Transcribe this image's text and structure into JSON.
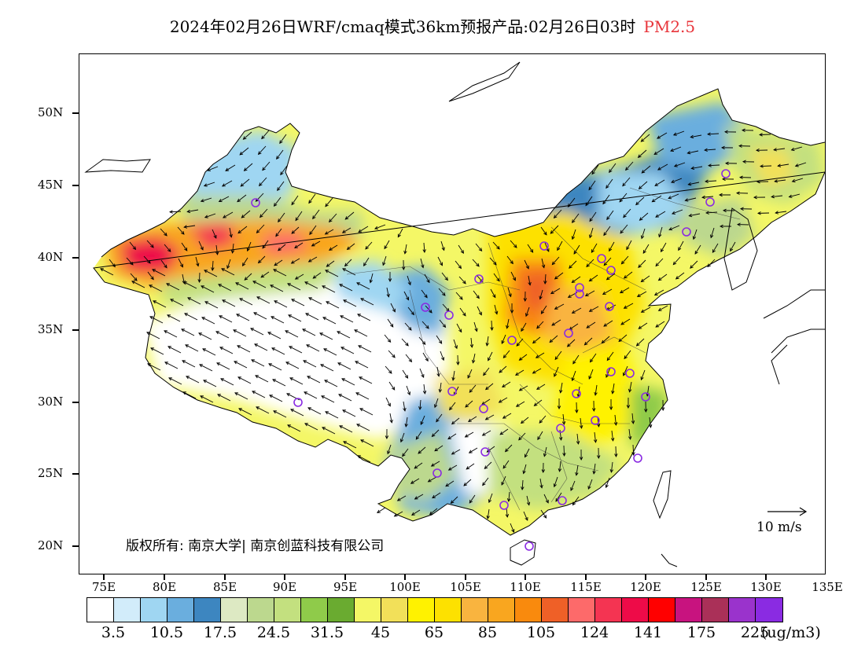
{
  "title": {
    "main": "2024年02月26日WRF/cmaq模式36km预报产品:02月26日03时",
    "pollutant": "PM2.5",
    "pollutant_color": "#e8343a"
  },
  "axes": {
    "lat_labels": [
      "50N",
      "45N",
      "40N",
      "35N",
      "30N",
      "25N",
      "20N"
    ],
    "lon_labels": [
      "75E",
      "80E",
      "85E",
      "90E",
      "95E",
      "100E",
      "105E",
      "110E",
      "115E",
      "120E",
      "125E",
      "130E",
      "135E"
    ]
  },
  "copyright": "版权所有: 南京大学| 南京创蓝科技有限公司",
  "wind_scale_label": "10 m/s",
  "colorbar": {
    "colors": [
      "#ffffff",
      "#d2ecfa",
      "#9fd6f2",
      "#6aaede",
      "#3d86c0",
      "#dde9c3",
      "#bcd88e",
      "#c3e07f",
      "#8fcb4a",
      "#6aab30",
      "#f4f766",
      "#f2e059",
      "#fff200",
      "#fde100",
      "#f9b43f",
      "#f9a61f",
      "#f98a0d",
      "#ef6027",
      "#fd6a6a",
      "#f43452",
      "#ee0b48",
      "#ff0000",
      "#c8137f",
      "#aa3058",
      "#9a33cc",
      "#8a2be2"
    ],
    "labels": [
      "3.5",
      "10.5",
      "17.5",
      "24.5",
      "31.5",
      "45",
      "65",
      "85",
      "105",
      "124",
      "141",
      "175",
      "225"
    ],
    "unit": "(ug/m3)"
  },
  "map": {
    "sea_color": "#ffffff",
    "site_marker_color": "#8a2be2",
    "coastline_color": "#000000"
  }
}
